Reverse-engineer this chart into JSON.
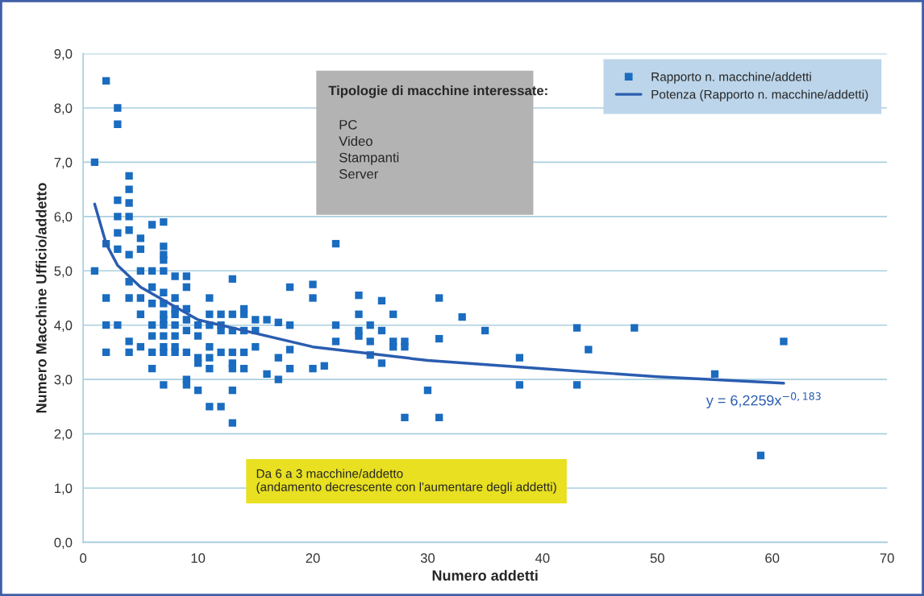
{
  "chart_data": {
    "type": "scatter",
    "xlabel": "Numero addetti",
    "ylabel": "Numero Macchine Ufficio/addetto",
    "xlim": [
      0,
      70
    ],
    "xticks": [
      0,
      10,
      20,
      30,
      40,
      50,
      60,
      70
    ],
    "ylim": [
      0,
      9
    ],
    "yticks": [
      {
        "value": 0,
        "label": "0,0"
      },
      {
        "value": 1,
        "label": "1,0"
      },
      {
        "value": 2,
        "label": "2,0"
      },
      {
        "value": 3,
        "label": "3,0"
      },
      {
        "value": 4,
        "label": "4,0"
      },
      {
        "value": 5,
        "label": "5,0"
      },
      {
        "value": 6,
        "label": "6,0"
      },
      {
        "value": 7,
        "label": "7,0"
      },
      {
        "value": 8,
        "label": "8,0"
      },
      {
        "value": 9,
        "label": "9,0"
      }
    ],
    "grid": "y",
    "legend": "top right",
    "series": [
      {
        "name": "Rapporto n. macchine/addetti",
        "marker": "square",
        "color": "#1a6cc0",
        "x": [
          1,
          1,
          2,
          2,
          2,
          2,
          2,
          3,
          3,
          3,
          3,
          3,
          3,
          3,
          4,
          4,
          4,
          4,
          4,
          4,
          4,
          4,
          4,
          4,
          5,
          5,
          5,
          5,
          5,
          5,
          6,
          6,
          6,
          6,
          6,
          6,
          6,
          6,
          7,
          7,
          7,
          7,
          7,
          7,
          7,
          7,
          7,
          7,
          7,
          7,
          7,
          7,
          8,
          8,
          8,
          8,
          8,
          8,
          8,
          8,
          9,
          9,
          9,
          9,
          9,
          9,
          9,
          9,
          10,
          10,
          10,
          10,
          10,
          11,
          11,
          11,
          11,
          11,
          11,
          11,
          12,
          12,
          12,
          12,
          12,
          13,
          13,
          13,
          13,
          13,
          13,
          13,
          13,
          14,
          14,
          14,
          14,
          14,
          15,
          15,
          15,
          16,
          16,
          17,
          17,
          17,
          18,
          18,
          18,
          18,
          20,
          20,
          20,
          21,
          22,
          22,
          22,
          24,
          24,
          24,
          24,
          25,
          25,
          25,
          26,
          26,
          26,
          27,
          27,
          27,
          28,
          28,
          28,
          30,
          31,
          31,
          31,
          33,
          35,
          38,
          38,
          43,
          43,
          44,
          48,
          55,
          59,
          61
        ],
        "values": [
          7.0,
          5.0,
          8.5,
          5.5,
          4.5,
          4.0,
          3.5,
          8.0,
          7.7,
          6.3,
          6.0,
          5.7,
          5.4,
          4.0,
          6.75,
          6.5,
          6.25,
          6.0,
          5.75,
          5.3,
          4.8,
          4.5,
          3.7,
          3.5,
          5.6,
          5.4,
          5.0,
          4.5,
          4.2,
          3.6,
          5.85,
          5.0,
          4.7,
          4.4,
          4.0,
          3.8,
          3.5,
          3.2,
          5.9,
          5.45,
          5.3,
          5.2,
          5.0,
          4.6,
          4.4,
          4.2,
          4.1,
          4.0,
          3.8,
          3.6,
          3.5,
          2.9,
          4.9,
          4.5,
          4.3,
          4.2,
          4.0,
          3.8,
          3.6,
          3.5,
          4.9,
          4.7,
          4.3,
          4.1,
          3.9,
          3.5,
          3.0,
          2.9,
          4.0,
          3.8,
          3.4,
          3.3,
          2.8,
          4.5,
          4.2,
          4.0,
          3.6,
          3.4,
          3.2,
          2.5,
          4.2,
          4.0,
          3.9,
          3.5,
          2.5,
          4.85,
          4.2,
          3.9,
          3.5,
          3.3,
          3.2,
          2.8,
          2.2,
          4.3,
          4.2,
          3.9,
          3.5,
          3.2,
          4.1,
          3.9,
          3.6,
          4.1,
          3.1,
          4.05,
          3.4,
          3.0,
          4.7,
          4.0,
          3.55,
          3.2,
          4.75,
          4.5,
          3.2,
          3.25,
          5.5,
          4.0,
          3.7,
          4.55,
          4.2,
          3.9,
          3.8,
          4.0,
          3.7,
          3.45,
          4.45,
          3.9,
          3.3,
          4.2,
          3.7,
          3.6,
          3.7,
          3.6,
          2.3,
          2.8,
          4.5,
          3.75,
          2.3,
          4.15,
          3.9,
          3.4,
          2.9,
          3.95,
          2.9,
          3.55,
          3.95,
          3.1,
          1.6,
          3.7
        ]
      },
      {
        "name": "Potenza (Rapporto n. macchine/addetti)",
        "type": "line",
        "marker": "none",
        "line_style": "solid",
        "color": "#2a5db0",
        "x": [
          1,
          2,
          3,
          5,
          10,
          20,
          30,
          40,
          50,
          61
        ],
        "values": [
          6.23,
          5.5,
          5.1,
          4.7,
          4.1,
          3.6,
          3.35,
          3.2,
          3.05,
          2.93
        ]
      }
    ],
    "annotations": [
      "Tipologie di macchine interessate:",
      "PC",
      "Video",
      "Stampanti",
      "Server",
      "Da 6 a 3 macchine/addetto",
      "(andamento decrescente con l'aumentare degli addetti)",
      "y = 6,2259x$^{−0,183}$"
    ]
  }
}
